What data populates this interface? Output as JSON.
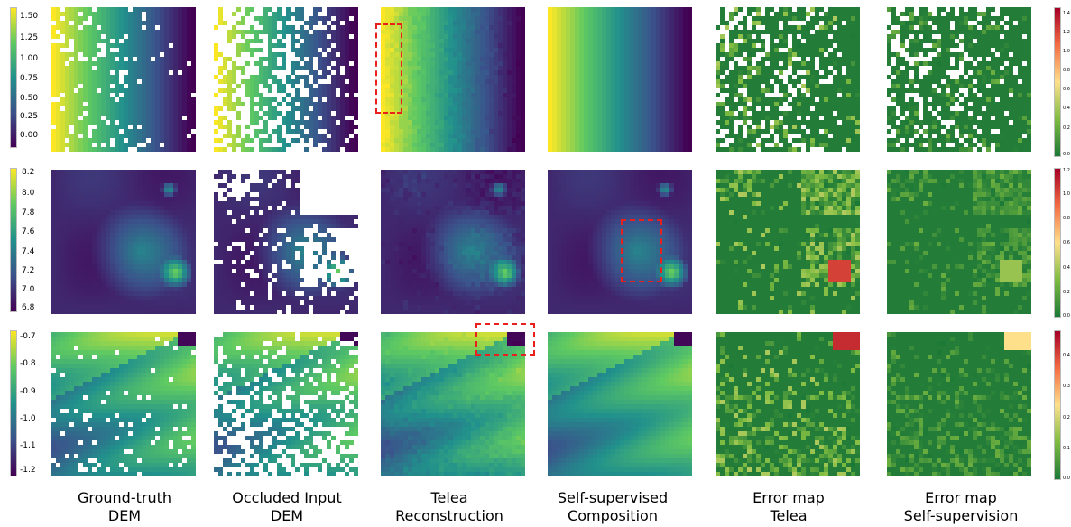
{
  "colors": {
    "viridis": [
      "#440154",
      "#3b528b",
      "#21918c",
      "#5ec962",
      "#fde725"
    ],
    "error": [
      "#1b7837",
      "#7fbc41",
      "#fee08b",
      "#f46d43",
      "#a50026"
    ],
    "highlight": "#e8211f"
  },
  "captions": [
    {
      "line1": "Ground-truth",
      "line2": "DEM"
    },
    {
      "line1": "Occluded Input",
      "line2": "DEM"
    },
    {
      "line1": "Telea",
      "line2": "Reconstruction"
    },
    {
      "line1": "Self-supervised",
      "line2": "Composition"
    },
    {
      "line1": "Error map",
      "line2": "Telea"
    },
    {
      "line1": "Error map",
      "line2": "Self-supervision"
    }
  ],
  "rows": [
    {
      "left_ticks": [
        "1.50",
        "1.25",
        "1.00",
        "0.75",
        "0.50",
        "0.25",
        "0.00"
      ],
      "right_ticks": [
        "1.4",
        "1.2",
        "1.0",
        "0.8",
        "0.6",
        "0.4",
        "0.2",
        "0.0"
      ]
    },
    {
      "left_ticks": [
        "8.2",
        "8.0",
        "7.8",
        "7.6",
        "7.4",
        "7.2",
        "7.0",
        "6.8"
      ],
      "right_ticks": [
        "1.2",
        "1.0",
        "0.8",
        "0.6",
        "0.4",
        "0.2",
        "0.0"
      ]
    },
    {
      "left_ticks": [
        "-0.7",
        "-0.8",
        "-0.9",
        "-1.0",
        "-1.1",
        "-1.2"
      ],
      "right_ticks": [
        "0.4",
        "0.3",
        "0.2",
        "0.1",
        "0.0"
      ]
    }
  ]
}
